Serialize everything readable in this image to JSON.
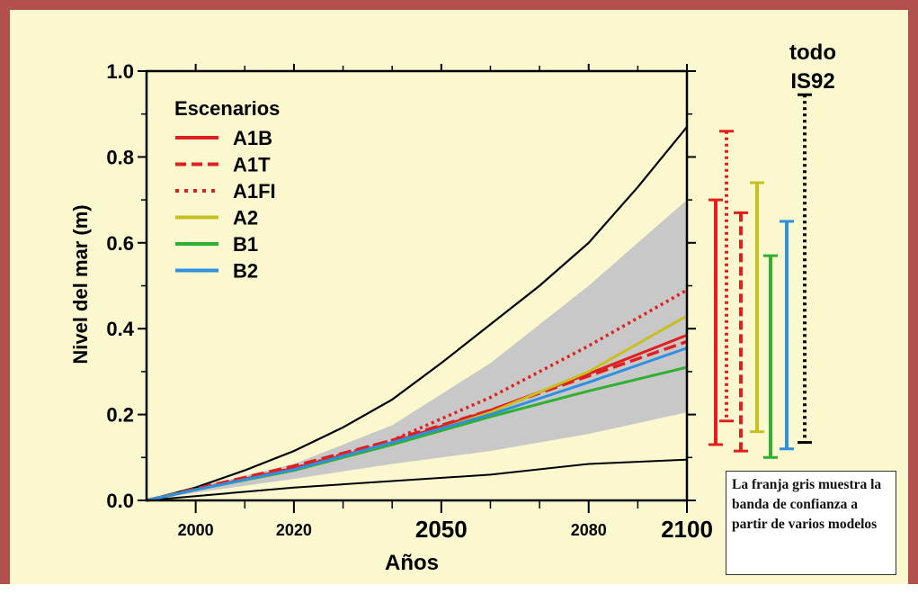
{
  "colors": {
    "background": "#fbf8cf",
    "border": "#b2504e",
    "band": "#c8c8c8",
    "A1B": "#e02020",
    "A1T": "#e02020",
    "A1FI": "#e02020",
    "A2": "#c8c020",
    "B1": "#30b030",
    "B2": "#2f8fe0",
    "envelope": "#000000"
  },
  "chart_data": {
    "type": "line",
    "xlabel": "Años",
    "ylabel": "Nivel del mar (m)",
    "xlim": [
      1990,
      2100
    ],
    "ylim": [
      0,
      1.0
    ],
    "x_ticks": [
      {
        "value": 2000,
        "label": "2000",
        "size": "small"
      },
      {
        "value": 2020,
        "label": "2020",
        "size": "small"
      },
      {
        "value": 2050,
        "label": "2050",
        "size": "large"
      },
      {
        "value": 2080,
        "label": "2080",
        "size": "small"
      },
      {
        "value": 2100,
        "label": "2100",
        "size": "large"
      }
    ],
    "x_minor_ticks": [
      2010,
      2030,
      2040,
      2060,
      2070,
      2090
    ],
    "y_ticks": [
      {
        "value": 0.0,
        "label": "0.0"
      },
      {
        "value": 0.2,
        "label": "0.2"
      },
      {
        "value": 0.4,
        "label": "0.4"
      },
      {
        "value": 0.6,
        "label": "0.6"
      },
      {
        "value": 0.8,
        "label": "0.8"
      },
      {
        "value": 1.0,
        "label": "1.0"
      }
    ],
    "legend_title": "Escenarios",
    "legend_position": "top-left",
    "series": [
      {
        "name": "A1B",
        "style": "solid",
        "x": [
          1990,
          2000,
          2020,
          2040,
          2060,
          2080,
          2100
        ],
        "y": [
          0,
          0.025,
          0.075,
          0.135,
          0.21,
          0.295,
          0.385
        ]
      },
      {
        "name": "A1T",
        "style": "dashed",
        "x": [
          1990,
          2000,
          2020,
          2040,
          2060,
          2080,
          2100
        ],
        "y": [
          0,
          0.027,
          0.08,
          0.14,
          0.21,
          0.29,
          0.37
        ]
      },
      {
        "name": "A1FI",
        "style": "dotted",
        "x": [
          1990,
          2000,
          2020,
          2040,
          2060,
          2080,
          2100
        ],
        "y": [
          0,
          0.025,
          0.075,
          0.14,
          0.24,
          0.36,
          0.49
        ]
      },
      {
        "name": "A2",
        "style": "solid",
        "x": [
          1990,
          2000,
          2020,
          2040,
          2060,
          2080,
          2100
        ],
        "y": [
          0,
          0.025,
          0.07,
          0.13,
          0.205,
          0.3,
          0.43
        ]
      },
      {
        "name": "B1",
        "style": "solid",
        "x": [
          1990,
          2000,
          2020,
          2040,
          2060,
          2080,
          2100
        ],
        "y": [
          0,
          0.025,
          0.07,
          0.13,
          0.195,
          0.255,
          0.31
        ]
      },
      {
        "name": "B2",
        "style": "solid",
        "x": [
          1990,
          2000,
          2020,
          2040,
          2060,
          2080,
          2100
        ],
        "y": [
          0,
          0.025,
          0.072,
          0.135,
          0.2,
          0.275,
          0.355
        ]
      }
    ],
    "envelope": {
      "upper": {
        "x": [
          1990,
          2000,
          2010,
          2020,
          2030,
          2040,
          2050,
          2060,
          2070,
          2080,
          2090,
          2100
        ],
        "y": [
          0,
          0.03,
          0.07,
          0.115,
          0.17,
          0.235,
          0.32,
          0.41,
          0.5,
          0.6,
          0.73,
          0.87
        ]
      },
      "lower": {
        "x": [
          1990,
          2000,
          2020,
          2040,
          2060,
          2080,
          2100
        ],
        "y": [
          0,
          0.01,
          0.03,
          0.045,
          0.06,
          0.085,
          0.095
        ]
      }
    },
    "band": {
      "x": [
        1990,
        2000,
        2020,
        2040,
        2060,
        2080,
        2100
      ],
      "upper": [
        0,
        0.03,
        0.085,
        0.175,
        0.32,
        0.5,
        0.7
      ],
      "lower": [
        0,
        0.018,
        0.05,
        0.085,
        0.115,
        0.155,
        0.205
      ]
    },
    "range_bars": [
      {
        "name": "A1B",
        "style": "solid",
        "low": 0.13,
        "high": 0.7
      },
      {
        "name": "A1FI",
        "style": "dotted",
        "low": 0.185,
        "high": 0.86
      },
      {
        "name": "A1T",
        "style": "dashed",
        "low": 0.115,
        "high": 0.67
      },
      {
        "name": "A2",
        "style": "solid",
        "low": 0.16,
        "high": 0.74
      },
      {
        "name": "B1",
        "style": "solid",
        "low": 0.1,
        "high": 0.57
      },
      {
        "name": "B2",
        "style": "solid",
        "low": 0.12,
        "high": 0.65
      },
      {
        "name": "todo IS92",
        "style": "dotted",
        "low": 0.135,
        "high": 0.945
      }
    ],
    "all_label_lines": [
      "todo",
      "IS92"
    ]
  },
  "note": {
    "text": "La franja gris muestra la banda de confianza a partir de varios modelos"
  }
}
